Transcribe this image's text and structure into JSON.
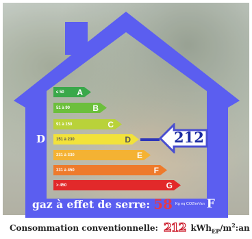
{
  "colors": {
    "house": "#5b5ef0",
    "value_arrow": "#ffffff",
    "value_arrow_border": "#4a4fd0",
    "ges_value": "#e43a4a",
    "footer_value": "#cc1a2a"
  },
  "scale": [
    {
      "range": "≤ 50",
      "letter": "A",
      "color": "#39a84a"
    },
    {
      "range": "51 à 90",
      "letter": "B",
      "color": "#6cbf3c"
    },
    {
      "range": "91 à 150",
      "letter": "C",
      "color": "#b9d23a"
    },
    {
      "range": "151 à 230",
      "letter": "D",
      "color": "#f2e23a"
    },
    {
      "range": "231 à 330",
      "letter": "E",
      "color": "#f4b233"
    },
    {
      "range": "331 à 450",
      "letter": "F",
      "color": "#ee7a2b"
    },
    {
      "range": "> 450",
      "letter": "G",
      "color": "#e2292a"
    }
  ],
  "rating": {
    "class_letter": "D",
    "value": "212"
  },
  "ges": {
    "label": "gaz à effet de serre:",
    "value": "58",
    "unit": "Kg eq CO2/m²/an",
    "letter": "F"
  },
  "footer": {
    "label": "Consommation conventionnelle:",
    "value": "212",
    "unit_main": "kWh",
    "unit_sub": "EP",
    "unit_tail": "/m",
    "unit_sup": "2",
    "unit_end": ":an"
  }
}
